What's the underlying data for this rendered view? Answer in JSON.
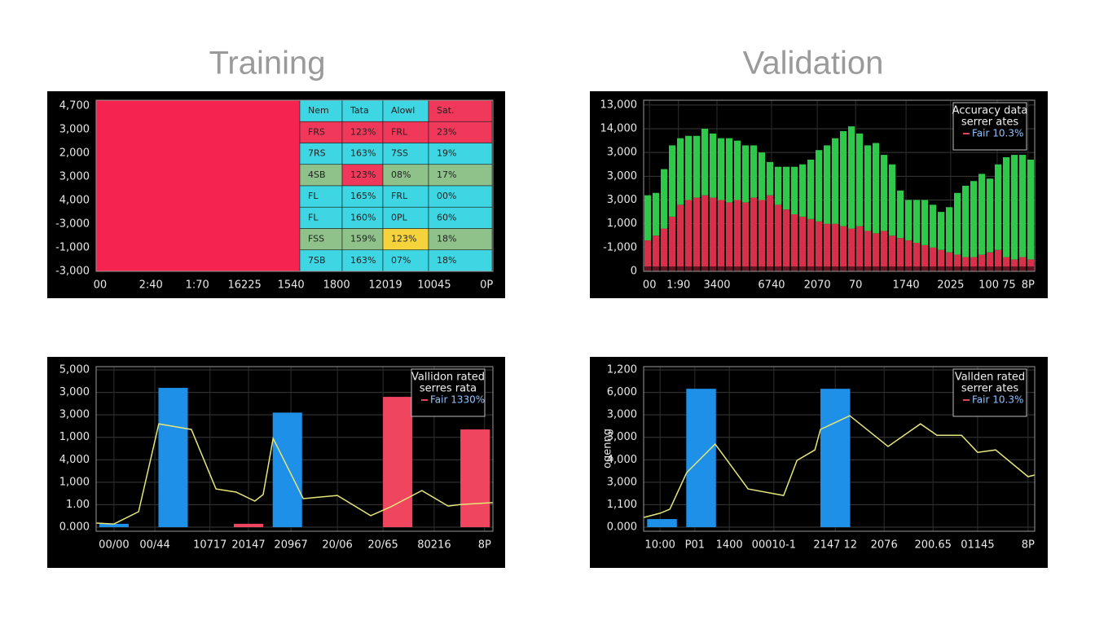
{
  "headings": [
    "Training",
    "Validation"
  ],
  "chart_data": [
    {
      "type": "table_panel",
      "ylim": [
        0,
        7
      ],
      "yticks": [
        {
          "value": 0,
          "label": "-3,000"
        },
        {
          "value": 1,
          "label": "-1,000"
        },
        {
          "value": 2,
          "label": "-3,000"
        },
        {
          "value": 3,
          "label": "4,000"
        },
        {
          "value": 4,
          "label": "3,000"
        },
        {
          "value": 5,
          "label": "2,000"
        },
        {
          "value": 6,
          "label": "3,000"
        },
        {
          "value": 7,
          "label": "4,700"
        }
      ],
      "xlim": [
        0,
        100
      ],
      "xticks": [
        {
          "value": 1,
          "label": "00"
        },
        {
          "value": 13.8,
          "label": "2:40"
        },
        {
          "value": 25.5,
          "label": "1:70"
        },
        {
          "value": 37.4,
          "label": "16225"
        },
        {
          "value": 49.1,
          "label": "1540"
        },
        {
          "value": 60.6,
          "label": "1800"
        },
        {
          "value": 72.9,
          "label": "12019"
        },
        {
          "value": 85.2,
          "label": "10045"
        },
        {
          "value": 98.4,
          "label": "0P"
        }
      ],
      "grid": false,
      "table": {
        "rows": [
          [
            "Nem",
            "Tata",
            "Alowl",
            "Sat."
          ],
          [
            "FRS",
            "123%",
            "FRL",
            "23%"
          ],
          [
            "7RS",
            "163%",
            "7SS",
            "19%"
          ],
          [
            "4SB",
            "123%",
            "08%",
            "17%"
          ],
          [
            "FL",
            "165%",
            "FRL",
            "00%"
          ],
          [
            "FL",
            "160%",
            "0PL",
            "60%"
          ],
          [
            "FSS",
            "159%",
            "123%",
            "18%"
          ],
          [
            "7SB",
            "163%",
            "07%",
            "18%"
          ]
        ],
        "cell_colors": [
          [
            "#3dd6e2",
            "#3dd6e2",
            "#3dd6e2",
            "#f0385a"
          ],
          [
            "#f0385a",
            "#f0385a",
            "#f0385a",
            "#f0385a"
          ],
          [
            "#3dd6e2",
            "#3dd6e2",
            "#3dd6e2",
            "#3dd6e2"
          ],
          [
            "#8fc28a",
            "#f0385a",
            "#8fc28a",
            "#8fc28a"
          ],
          [
            "#3dd6e2",
            "#3dd6e2",
            "#3dd6e2",
            "#3dd6e2"
          ],
          [
            "#3dd6e2",
            "#3dd6e2",
            "#3dd6e2",
            "#3dd6e2"
          ],
          [
            "#8fc28a",
            "#8fc28a",
            "#f5d33c",
            "#8fc28a"
          ],
          [
            "#3dd6e2",
            "#3dd6e2",
            "#3dd6e2",
            "#3dd6e2"
          ]
        ]
      }
    },
    {
      "type": "stacked_bar",
      "ylim": [
        0,
        7.2
      ],
      "yticks": [
        0,
        {
          "value": 1,
          "label": "-1,000"
        },
        {
          "value": 2,
          "label": "1,000"
        },
        {
          "value": 3,
          "label": "3,000"
        },
        {
          "value": 4,
          "label": "3,000"
        },
        {
          "value": 5,
          "label": "3,000"
        },
        {
          "value": 6,
          "label": "14,000"
        },
        {
          "value": 7,
          "label": "13,000"
        }
      ],
      "xlim": [
        0,
        100
      ],
      "xticks": [
        {
          "value": 1.5,
          "label": "00"
        },
        {
          "value": 8.9,
          "label": "1:90"
        },
        {
          "value": 18.75,
          "label": "3400"
        },
        {
          "value": 32.7,
          "label": "6740"
        },
        {
          "value": 44.4,
          "label": "2070"
        },
        {
          "value": 54.2,
          "label": "70"
        },
        {
          "value": 67.1,
          "label": "1740"
        },
        {
          "value": 78.5,
          "label": "2025"
        },
        {
          "value": 90.4,
          "label": "100 75"
        },
        {
          "value": 98.3,
          "label": "8P"
        }
      ],
      "grid": true,
      "categories": [
        null,
        null,
        null,
        null,
        null,
        null,
        null,
        null,
        null,
        null,
        null,
        null,
        null,
        null,
        null,
        null,
        null,
        null,
        null,
        null,
        null,
        null,
        null,
        null,
        null,
        null,
        null,
        null,
        null,
        null,
        null,
        null,
        null,
        null,
        null,
        null,
        null,
        null,
        null,
        null,
        null,
        null,
        null,
        null,
        null,
        null,
        null,
        null
      ],
      "series": [
        {
          "color": "#d8304a",
          "values": [
            1.3,
            1.5,
            1.8,
            2.3,
            2.8,
            3.0,
            3.1,
            3.2,
            3.1,
            3.0,
            2.9,
            3.0,
            2.9,
            3.1,
            3.0,
            3.2,
            2.8,
            2.6,
            2.4,
            2.3,
            2.2,
            2.1,
            2.0,
            2.0,
            1.9,
            1.8,
            1.9,
            1.7,
            1.6,
            1.7,
            1.5,
            1.4,
            1.3,
            1.2,
            1.1,
            1.0,
            0.9,
            0.8,
            0.7,
            0.6,
            0.6,
            0.7,
            0.8,
            0.9,
            0.6,
            0.5,
            0.6,
            0.5
          ]
        },
        {
          "color": "#2ec84a",
          "values": [
            1.9,
            1.8,
            2.5,
            3.0,
            2.8,
            2.7,
            2.6,
            2.8,
            2.7,
            2.6,
            2.7,
            2.5,
            2.4,
            2.2,
            2.0,
            1.4,
            1.6,
            1.8,
            2.0,
            2.2,
            2.5,
            3.0,
            3.3,
            3.6,
            4.0,
            4.3,
            3.9,
            3.6,
            3.8,
            3.2,
            3.0,
            2.0,
            1.7,
            1.8,
            1.9,
            1.8,
            1.6,
            1.9,
            2.6,
            3.0,
            3.2,
            3.4,
            3.1,
            3.6,
            4.2,
            4.4,
            4.3,
            4.2
          ]
        }
      ],
      "legend": {
        "lines": [
          "Accuracy data",
          "serrer ates"
        ],
        "entry": "Fair 10.3%",
        "color": "#e0455a",
        "corner": "top-right"
      }
    },
    {
      "type": "combo",
      "ylim": [
        0,
        7
      ],
      "yticks": [
        {
          "value": 0,
          "label": "0.000"
        },
        {
          "value": 1,
          "label": "1.00"
        },
        {
          "value": 2,
          "label": "1,000"
        },
        {
          "value": 3,
          "label": "4,000"
        },
        {
          "value": 4,
          "label": "1,000"
        },
        {
          "value": 5,
          "label": "3,000"
        },
        {
          "value": 6,
          "label": "3,000"
        },
        {
          "value": 7,
          "label": "5,000"
        }
      ],
      "xlim": [
        0,
        100
      ],
      "xticks": [
        {
          "value": 4.5,
          "label": "00/00"
        },
        {
          "value": 14.8,
          "label": "00/44"
        },
        {
          "value": 28.7,
          "label": "10717"
        },
        {
          "value": 38.4,
          "label": "20147"
        },
        {
          "value": 49.1,
          "label": "20967"
        },
        {
          "value": 60.8,
          "label": "20/06"
        },
        {
          "value": 72.3,
          "label": "20/65"
        },
        {
          "value": 85.2,
          "label": "80216"
        },
        {
          "value": 97.9,
          "label": "8P"
        }
      ],
      "grid": true,
      "bar_width": 7.4,
      "series": [
        {
          "color": "#1e90e8",
          "x": [
            4.5,
            19.4,
            48.2
          ],
          "values": [
            0.15,
            6.2,
            5.1
          ]
        },
        {
          "color": "#f0455f",
          "x": [
            38.4,
            76.0,
            95.5
          ],
          "values": [
            0.15,
            5.8,
            4.35
          ]
        }
      ],
      "line": {
        "color": "#e6e67a",
        "x": [
          0,
          4.5,
          10.7,
          15.8,
          24.0,
          30.2,
          35.3,
          40.0,
          42.1,
          44.6,
          52.2,
          60.8,
          69.2,
          74.3,
          82.1,
          88.7,
          91.8,
          100
        ],
        "values": [
          0.18,
          0.14,
          0.69,
          4.6,
          4.35,
          1.7,
          1.56,
          1.16,
          1.45,
          3.95,
          1.27,
          1.41,
          0.51,
          0.91,
          1.63,
          0.94,
          1.01,
          1.09
        ]
      },
      "legend": {
        "lines": [
          "Vallidon rated",
          "serres rata"
        ],
        "entry": "Fair 1330%",
        "color": "#e0455a",
        "corner": "top-right"
      }
    },
    {
      "type": "combo",
      "ylabel": "ogenng",
      "ylim": [
        0,
        7
      ],
      "yticks": [
        {
          "value": 0,
          "label": "0.000"
        },
        {
          "value": 1,
          "label": "1,100"
        },
        {
          "value": 2,
          "label": "3,000"
        },
        {
          "value": 3,
          "label": "4,000"
        },
        {
          "value": 4,
          "label": "3,000"
        },
        {
          "value": 5,
          "label": "3,000"
        },
        {
          "value": 6,
          "label": "6,000"
        },
        {
          "value": 7,
          "label": "1,200"
        }
      ],
      "xlim": [
        0,
        100
      ],
      "xticks": [
        {
          "value": 4.2,
          "label": "10:00"
        },
        {
          "value": 13.1,
          "label": "P01"
        },
        {
          "value": 21.9,
          "label": "1400"
        },
        {
          "value": 33.3,
          "label": "00010-1"
        },
        {
          "value": 49.0,
          "label": "2147 12"
        },
        {
          "value": 61.5,
          "label": "2076"
        },
        {
          "value": 74.0,
          "label": "200.65"
        },
        {
          "value": 85.4,
          "label": "01145"
        },
        {
          "value": 98.3,
          "label": "8P"
        }
      ],
      "grid": true,
      "bar_width": 7.6,
      "series": [
        {
          "color": "#1e90e8",
          "x": [
            4.7,
            14.7,
            49.0
          ],
          "values": [
            0.36,
            6.16,
            6.16
          ]
        }
      ],
      "line": {
        "color": "#e6e67a",
        "x": [
          0,
          4.2,
          6.7,
          11.0,
          18.3,
          26.7,
          35.8,
          39.2,
          43.8,
          45.2,
          52.7,
          62.5,
          70.8,
          75.0,
          81.3,
          85.4,
          90.0,
          98.3,
          100
        ],
        "values": [
          0.43,
          0.62,
          0.8,
          2.43,
          3.7,
          1.7,
          1.41,
          2.97,
          3.44,
          4.35,
          4.96,
          3.59,
          4.6,
          4.09,
          4.09,
          3.33,
          3.44,
          2.25,
          2.32
        ]
      },
      "legend": {
        "lines": [
          "Vallden rated",
          "serrer ates"
        ],
        "entry": "Fair 10.3%",
        "color": "#e0455a",
        "corner": "top-right"
      }
    }
  ]
}
